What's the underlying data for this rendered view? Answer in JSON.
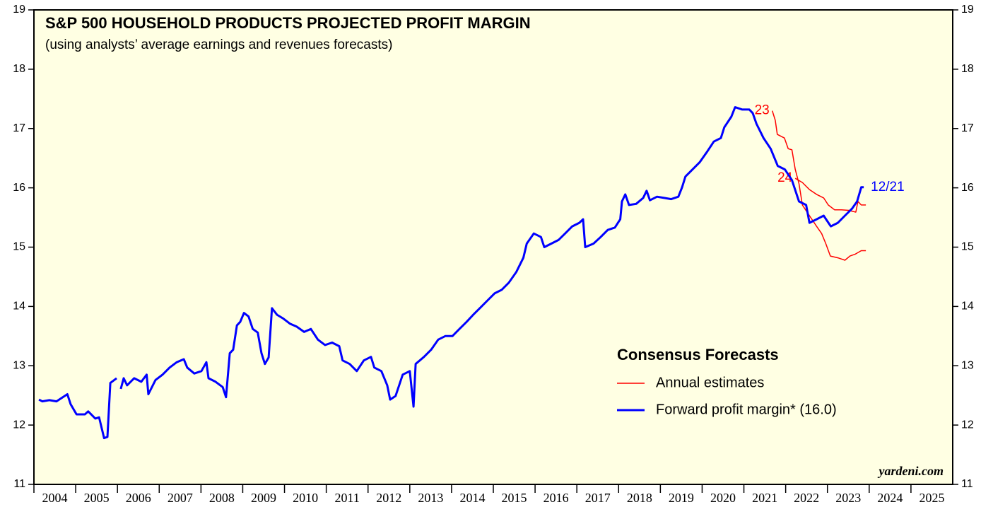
{
  "chart_data": {
    "type": "line",
    "title": "S&P 500 HOUSEHOLD PRODUCTS PROJECTED PROFIT MARGIN",
    "subtitle": "(using analysts’ average earnings and revenues forecasts)",
    "source": "yardeni.com",
    "legend_title": "Consensus Forecasts",
    "xlim": [
      2004,
      2026
    ],
    "xticks": [
      {
        "value": 2004.5,
        "label": "2004"
      },
      {
        "value": 2005.5,
        "label": "2005"
      },
      {
        "value": 2006.5,
        "label": "2006"
      },
      {
        "value": 2007.5,
        "label": "2007"
      },
      {
        "value": 2008.5,
        "label": "2008"
      },
      {
        "value": 2009.5,
        "label": "2009"
      },
      {
        "value": 2010.5,
        "label": "2010"
      },
      {
        "value": 2011.5,
        "label": "2011"
      },
      {
        "value": 2012.5,
        "label": "2012"
      },
      {
        "value": 2013.5,
        "label": "2013"
      },
      {
        "value": 2014.5,
        "label": "2014"
      },
      {
        "value": 2015.5,
        "label": "2015"
      },
      {
        "value": 2016.5,
        "label": "2016"
      },
      {
        "value": 2017.5,
        "label": "2017"
      },
      {
        "value": 2018.5,
        "label": "2018"
      },
      {
        "value": 2019.5,
        "label": "2019"
      },
      {
        "value": 2020.5,
        "label": "2020"
      },
      {
        "value": 2021.5,
        "label": "2021"
      },
      {
        "value": 2022.5,
        "label": "2022"
      },
      {
        "value": 2023.5,
        "label": "2023"
      },
      {
        "value": 2024.5,
        "label": "2024"
      },
      {
        "value": 2025.5,
        "label": "2025"
      }
    ],
    "ylim": [
      11,
      19
    ],
    "yticks": [
      11,
      12,
      13,
      14,
      15,
      16,
      17,
      18,
      19
    ],
    "series": [
      {
        "name": "Annual estimates",
        "color": "#ff0000",
        "lines": [
          {
            "label": "23",
            "x": [
              2021.68,
              2021.75,
              2021.8,
              2021.97,
              2022.06,
              2022.15,
              2022.23,
              2022.32,
              2022.4,
              2022.57,
              2022.74,
              2022.86,
              2022.96,
              2023.07,
              2023.25,
              2023.42,
              2023.54,
              2023.66,
              2023.81,
              2023.92
            ],
            "values": [
              17.3,
              17.14,
              16.9,
              16.84,
              16.66,
              16.64,
              16.31,
              16.07,
              15.71,
              15.53,
              15.35,
              15.23,
              15.06,
              14.85,
              14.82,
              14.78,
              14.85,
              14.88,
              14.94,
              14.94
            ]
          },
          {
            "label": "24",
            "x": [
              2022.23,
              2022.4,
              2022.57,
              2022.74,
              2022.91,
              2023.02,
              2023.17,
              2023.34,
              2023.51,
              2023.68,
              2023.73,
              2023.81,
              2023.92
            ],
            "values": [
              16.16,
              16.09,
              15.97,
              15.89,
              15.83,
              15.71,
              15.63,
              15.63,
              15.62,
              15.59,
              15.77,
              15.71,
              15.71
            ]
          }
        ]
      },
      {
        "name": "Forward profit margin* (16.0)",
        "color": "#0000ff",
        "end_label": "12/21",
        "x": [
          2004.12,
          2004.2,
          2004.37,
          2004.54,
          2004.8,
          2004.88,
          2005.02,
          2005.22,
          2005.3,
          2005.47,
          2005.56,
          2005.68,
          2005.76,
          2005.83,
          2005.98,
          2006.03,
          2006.08,
          2006.15,
          2006.23,
          2006.4,
          2006.57,
          2006.7,
          2006.74,
          2006.91,
          2007.08,
          2007.25,
          2007.42,
          2007.59,
          2007.67,
          2007.84,
          2008.01,
          2008.13,
          2008.18,
          2008.35,
          2008.52,
          2008.6,
          2008.69,
          2008.77,
          2008.86,
          2008.94,
          2009.03,
          2009.14,
          2009.24,
          2009.36,
          2009.45,
          2009.53,
          2009.62,
          2009.7,
          2009.82,
          2009.96,
          2010.13,
          2010.29,
          2010.47,
          2010.63,
          2010.8,
          2010.97,
          2011.14,
          2011.31,
          2011.39,
          2011.56,
          2011.73,
          2011.9,
          2012.07,
          2012.15,
          2012.32,
          2012.46,
          2012.53,
          2012.66,
          2012.83,
          2013.0,
          2013.09,
          2013.14,
          2013.34,
          2013.51,
          2013.68,
          2013.85,
          2014.02,
          2014.19,
          2014.36,
          2014.52,
          2014.69,
          2014.86,
          2015.03,
          2015.2,
          2015.37,
          2015.55,
          2015.72,
          2015.8,
          2015.97,
          2016.14,
          2016.22,
          2016.39,
          2016.56,
          2016.72,
          2016.89,
          2017.06,
          2017.15,
          2017.2,
          2017.4,
          2017.57,
          2017.74,
          2017.91,
          2018.04,
          2018.08,
          2018.16,
          2018.25,
          2018.42,
          2018.59,
          2018.67,
          2018.75,
          2018.92,
          2019.09,
          2019.26,
          2019.43,
          2019.52,
          2019.6,
          2019.77,
          2019.94,
          2020.11,
          2020.28,
          2020.45,
          2020.53,
          2020.7,
          2020.79,
          2020.96,
          2021.13,
          2021.21,
          2021.3,
          2021.47,
          2021.64,
          2021.81,
          2021.98,
          2022.15,
          2022.32,
          2022.49,
          2022.57,
          2022.74,
          2022.91,
          2023.08,
          2023.25,
          2023.42,
          2023.59,
          2023.71,
          2023.81,
          2023.87
        ],
        "values": [
          12.43,
          12.4,
          12.42,
          12.4,
          12.52,
          12.35,
          12.18,
          12.18,
          12.23,
          12.11,
          12.13,
          11.78,
          11.8,
          12.71,
          12.79,
          null,
          12.61,
          12.79,
          12.67,
          12.79,
          12.73,
          12.85,
          12.52,
          12.76,
          12.85,
          12.97,
          13.06,
          13.11,
          12.97,
          12.87,
          12.91,
          13.06,
          12.79,
          12.73,
          12.64,
          12.47,
          13.21,
          13.27,
          13.68,
          13.74,
          13.89,
          13.83,
          13.62,
          13.56,
          13.21,
          13.03,
          13.14,
          13.97,
          13.86,
          13.8,
          13.71,
          13.66,
          13.57,
          13.62,
          13.44,
          13.35,
          13.39,
          13.33,
          13.09,
          13.03,
          12.91,
          13.09,
          13.15,
          12.97,
          12.91,
          12.67,
          12.43,
          12.49,
          12.85,
          12.91,
          12.31,
          13.03,
          13.15,
          13.27,
          13.44,
          13.5,
          13.5,
          13.62,
          13.74,
          13.86,
          13.98,
          14.1,
          14.22,
          14.28,
          14.4,
          14.58,
          14.82,
          15.06,
          15.23,
          15.17,
          15.0,
          15.06,
          15.12,
          15.23,
          15.35,
          15.41,
          15.47,
          15.0,
          15.06,
          15.17,
          15.29,
          15.33,
          15.47,
          15.77,
          15.89,
          15.71,
          15.73,
          15.83,
          15.95,
          15.79,
          15.85,
          15.83,
          15.81,
          15.85,
          16.01,
          16.19,
          16.31,
          16.43,
          16.6,
          16.78,
          16.84,
          17.02,
          17.2,
          17.36,
          17.32,
          17.32,
          17.26,
          17.08,
          16.84,
          16.66,
          16.37,
          16.31,
          16.13,
          15.77,
          15.71,
          15.41,
          15.47,
          15.53,
          15.35,
          15.41,
          15.53,
          15.65,
          15.77,
          16.01,
          16.01
        ]
      }
    ]
  }
}
